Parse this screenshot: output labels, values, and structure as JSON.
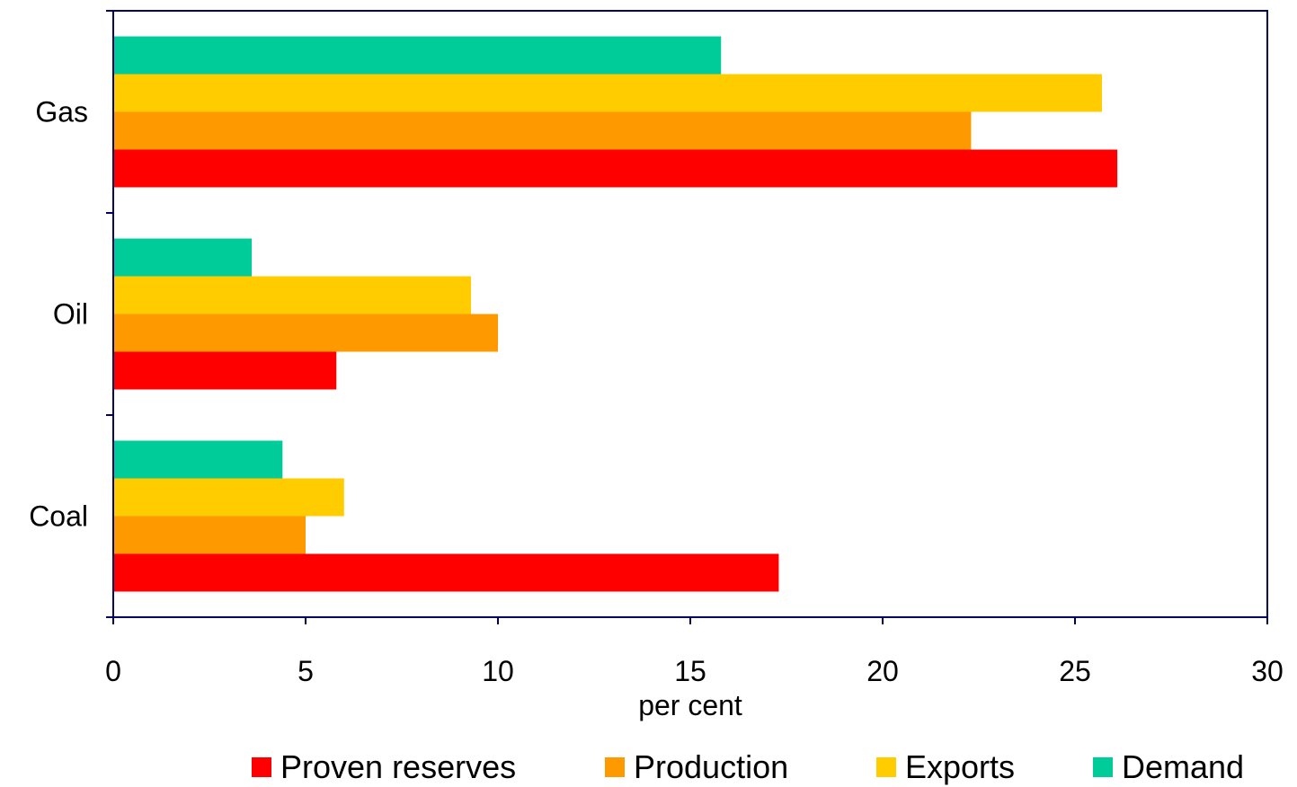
{
  "chart_data": {
    "type": "bar",
    "orientation": "horizontal",
    "categories": [
      "Gas",
      "Oil",
      "Coal"
    ],
    "series": [
      {
        "name": "Proven reserves",
        "color": "#ff0000",
        "values": [
          26.1,
          5.8,
          17.3
        ]
      },
      {
        "name": "Production",
        "color": "#ff9900",
        "values": [
          22.3,
          10.0,
          5.0
        ]
      },
      {
        "name": "Exports",
        "color": "#ffcc00",
        "values": [
          25.7,
          9.3,
          6.0
        ]
      },
      {
        "name": "Demand",
        "color": "#00cc99",
        "values": [
          15.8,
          3.6,
          4.4
        ]
      }
    ],
    "xlabel": "per cent",
    "xlim": [
      0,
      30
    ],
    "xticks": [
      "0",
      "5",
      "10",
      "15",
      "20",
      "25",
      "30"
    ],
    "grid": false,
    "legend_position": "bottom",
    "axis_color": "#000066"
  }
}
